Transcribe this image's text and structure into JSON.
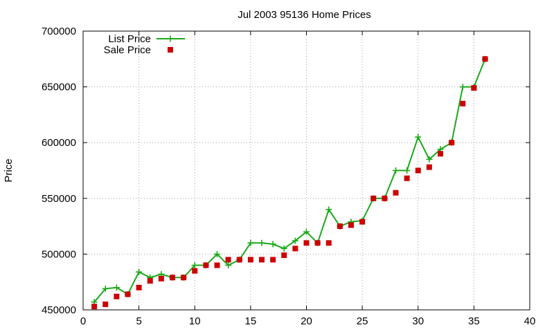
{
  "chart_data": {
    "type": "line",
    "title": "Jul 2003 95136 Home Prices",
    "xlabel": "",
    "ylabel": "Price",
    "xlim": [
      0,
      40
    ],
    "ylim": [
      450000,
      700000
    ],
    "xticks": [
      "0",
      "5",
      "10",
      "15",
      "20",
      "25",
      "30",
      "35",
      "40"
    ],
    "yticks": [
      "450000",
      "500000",
      "550000",
      "600000",
      "650000",
      "700000"
    ],
    "grid": true,
    "legend_position": "top-left",
    "series": [
      {
        "name": "List Price",
        "style": "line-with-plus-markers",
        "color": "#1aa81a",
        "x": [
          1,
          2,
          3,
          4,
          5,
          6,
          7,
          8,
          9,
          10,
          11,
          12,
          13,
          14,
          15,
          16,
          17,
          18,
          19,
          20,
          21,
          22,
          23,
          24,
          25,
          26,
          27,
          28,
          29,
          30,
          31,
          32,
          33,
          34,
          35,
          36
        ],
        "y": [
          457000,
          469000,
          470000,
          464000,
          484000,
          479000,
          482000,
          479000,
          479000,
          490000,
          490000,
          500000,
          490000,
          495000,
          510000,
          510000,
          509000,
          505000,
          512000,
          520000,
          510000,
          540000,
          525000,
          529000,
          530000,
          550000,
          550000,
          575000,
          575000,
          605000,
          585000,
          594000,
          600000,
          650000,
          650000,
          675000
        ]
      },
      {
        "name": "Sale Price",
        "style": "square-markers",
        "color": "#cc0000",
        "x": [
          1,
          2,
          3,
          4,
          5,
          6,
          7,
          8,
          9,
          10,
          11,
          12,
          13,
          14,
          15,
          16,
          17,
          18,
          19,
          20,
          21,
          22,
          23,
          24,
          25,
          26,
          27,
          28,
          29,
          30,
          31,
          32,
          33,
          34,
          35,
          36
        ],
        "y": [
          453000,
          455000,
          462000,
          464000,
          470000,
          476000,
          478000,
          479000,
          479000,
          485000,
          490000,
          490000,
          495000,
          495000,
          495000,
          495000,
          495000,
          499000,
          505000,
          510000,
          510000,
          510000,
          525000,
          526000,
          529000,
          550000,
          550000,
          555000,
          568000,
          575000,
          578000,
          590000,
          600000,
          635000,
          649000,
          675000
        ]
      }
    ]
  }
}
